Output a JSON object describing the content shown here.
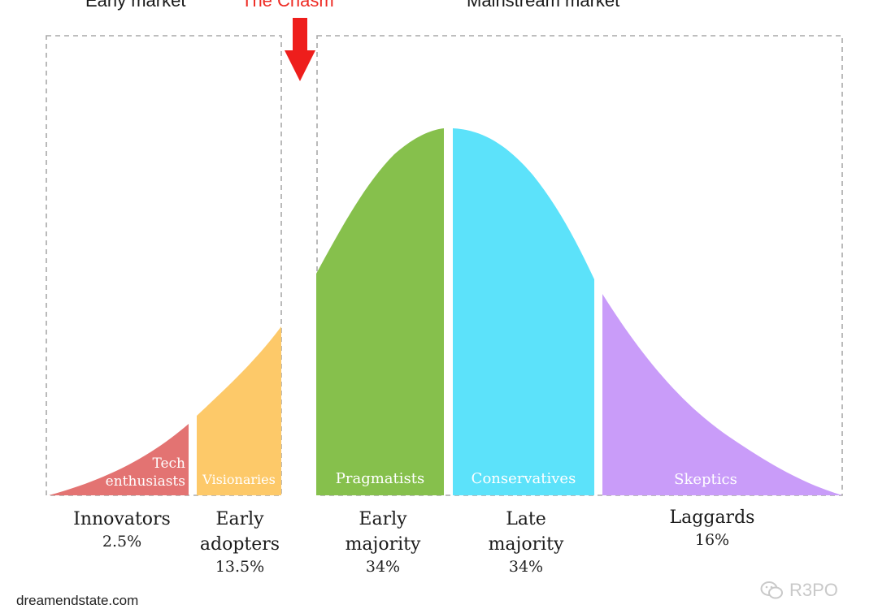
{
  "headers": {
    "early_market": "Early market",
    "the_chasm": "The Chasm",
    "mainstream_market": "Mainstream market"
  },
  "segments": [
    {
      "id": "innovators",
      "inner_label_lines": [
        "Tech",
        "enthusiasts"
      ],
      "category_lines": [
        "Innovators"
      ],
      "percent": "2.5%",
      "color": "#e37372"
    },
    {
      "id": "early-adopters",
      "inner_label_lines": [
        "Visionaries"
      ],
      "category_lines": [
        "Early",
        "adopters"
      ],
      "percent": "13.5%",
      "color": "#fdc969"
    },
    {
      "id": "early-majority",
      "inner_label_lines": [
        "Pragmatists"
      ],
      "category_lines": [
        "Early",
        "majority"
      ],
      "percent": "34%",
      "color": "#86c04c"
    },
    {
      "id": "late-majority",
      "inner_label_lines": [
        "Conservatives"
      ],
      "category_lines": [
        "Late",
        "majority"
      ],
      "percent": "34%",
      "color": "#5ce2fa"
    },
    {
      "id": "laggards",
      "inner_label_lines": [
        "Skeptics"
      ],
      "category_lines": [
        "Laggards"
      ],
      "percent": "16%",
      "color": "#c99cf9"
    }
  ],
  "chasm_arrow_color": "#ee1e1c",
  "footer": "dreamendstate.com",
  "watermark": {
    "text": "R3PO",
    "icon": "wechat-icon"
  }
}
